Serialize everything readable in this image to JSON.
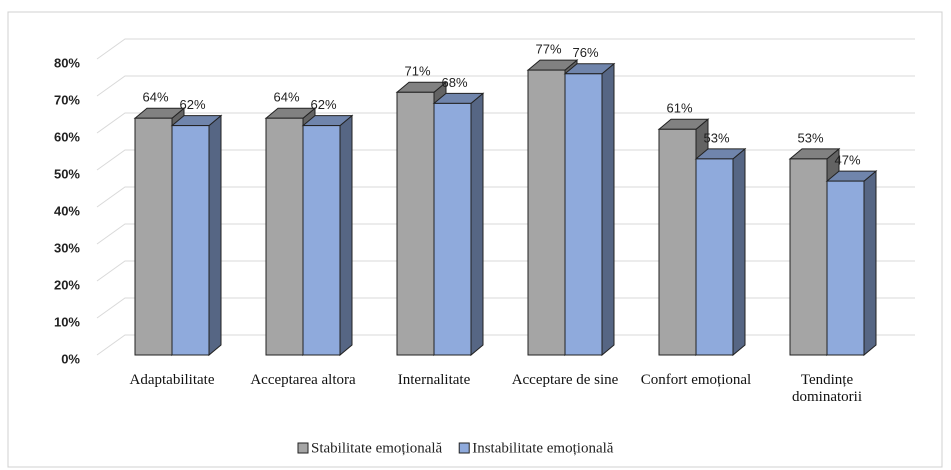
{
  "chart_data": {
    "type": "bar3d",
    "categories": [
      "Adaptabilitate",
      "Acceptarea altora",
      "Internalitate",
      "Acceptare de sine",
      "Confort emoțional",
      "Tendințe dominatorii"
    ],
    "series": [
      {
        "name": "Stabilitate emoțională",
        "color": "#a5a5a5",
        "values": [
          64,
          64,
          71,
          77,
          61,
          53
        ],
        "value_labels": [
          "64%",
          "64%",
          "71%",
          "77%",
          "61%",
          "53%"
        ]
      },
      {
        "name": "Instabilitate emoțională",
        "color": "#8faadc",
        "values": [
          62,
          62,
          68,
          76,
          53,
          47
        ],
        "value_labels": [
          "62%",
          "62%",
          "68%",
          "76%",
          "53%",
          "47%"
        ]
      }
    ],
    "ylim": [
      0,
      80
    ],
    "yticks": [
      {
        "value": 0,
        "label": "0%"
      },
      {
        "value": 10,
        "label": "10%"
      },
      {
        "value": 20,
        "label": "20%"
      },
      {
        "value": 30,
        "label": "30%"
      },
      {
        "value": 40,
        "label": "40%"
      },
      {
        "value": 50,
        "label": "50%"
      },
      {
        "value": 60,
        "label": "60%"
      },
      {
        "value": 70,
        "label": "70%"
      },
      {
        "value": 80,
        "label": "80%"
      }
    ],
    "grid": true,
    "legend": "bottom"
  }
}
